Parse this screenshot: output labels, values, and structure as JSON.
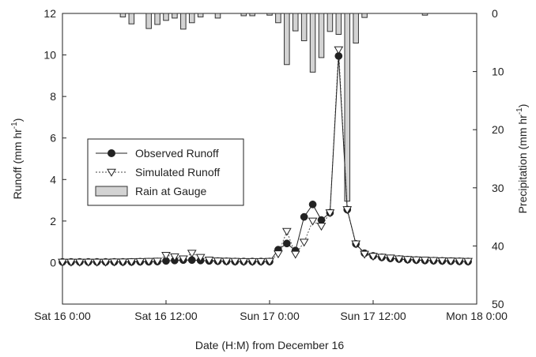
{
  "chart_data": {
    "type": "line",
    "xlabel": "Date (H:M) from December 16",
    "ylabel_left": "Runoff (mm hr",
    "ylabel_left_sup": "-1",
    "ylabel_left_close": ")",
    "ylabel_right": "Precipitation (mm hr",
    "ylabel_right_sup": "-1",
    "ylabel_right_close": ")",
    "x_range_hours": [
      0,
      48
    ],
    "y_left_range": [
      -2,
      12
    ],
    "y_right_range": [
      50,
      0
    ],
    "x_ticks": [
      {
        "hour": 0,
        "label": "Sat 16 0:00"
      },
      {
        "hour": 12,
        "label": "Sat 16 12:00"
      },
      {
        "hour": 24,
        "label": "Sun 17 0:00"
      },
      {
        "hour": 36,
        "label": "Sun 17 12:00"
      },
      {
        "hour": 48,
        "label": "Mon 18 0:00"
      }
    ],
    "y_left_ticks": [
      {
        "value": 0,
        "label": "0"
      },
      {
        "value": 2,
        "label": "2"
      },
      {
        "value": 4,
        "label": "4"
      },
      {
        "value": 6,
        "label": "6"
      },
      {
        "value": 8,
        "label": "8"
      },
      {
        "value": 10,
        "label": "10"
      },
      {
        "value": 12,
        "label": "12"
      }
    ],
    "y_right_ticks": [
      {
        "value": 0,
        "label": "0"
      },
      {
        "value": 10,
        "label": "10"
      },
      {
        "value": 20,
        "label": "20"
      },
      {
        "value": 30,
        "label": "30"
      },
      {
        "value": 40,
        "label": "40"
      },
      {
        "value": 50,
        "label": "50"
      }
    ],
    "series": [
      {
        "name": "Observed Runoff",
        "marker": "circle",
        "color": "#222222",
        "points": [
          [
            0,
            0.03
          ],
          [
            1,
            0.03
          ],
          [
            2,
            0.03
          ],
          [
            3,
            0.03
          ],
          [
            4,
            0.03
          ],
          [
            5,
            0.03
          ],
          [
            6,
            0.03
          ],
          [
            7,
            0.03
          ],
          [
            8,
            0.03
          ],
          [
            9,
            0.04
          ],
          [
            10,
            0.04
          ],
          [
            11,
            0.05
          ],
          [
            12,
            0.08
          ],
          [
            13,
            0.1
          ],
          [
            14,
            0.12
          ],
          [
            15,
            0.12
          ],
          [
            16,
            0.1
          ],
          [
            17,
            0.08
          ],
          [
            18,
            0.07
          ],
          [
            19,
            0.06
          ],
          [
            20,
            0.05
          ],
          [
            21,
            0.05
          ],
          [
            22,
            0.05
          ],
          [
            23,
            0.05
          ],
          [
            24,
            0.05
          ],
          [
            25,
            0.62
          ],
          [
            26,
            0.92
          ],
          [
            27,
            0.58
          ],
          [
            28,
            2.2
          ],
          [
            29,
            2.8
          ],
          [
            30,
            2.05
          ],
          [
            31,
            2.4
          ],
          [
            32,
            9.95
          ],
          [
            33,
            2.55
          ],
          [
            34,
            0.9
          ],
          [
            35,
            0.45
          ],
          [
            36,
            0.32
          ],
          [
            37,
            0.25
          ],
          [
            38,
            0.2
          ],
          [
            39,
            0.17
          ],
          [
            40,
            0.14
          ],
          [
            41,
            0.12
          ],
          [
            42,
            0.1
          ],
          [
            43,
            0.09
          ],
          [
            44,
            0.08
          ],
          [
            45,
            0.07
          ],
          [
            46,
            0.06
          ],
          [
            47,
            0.05
          ]
        ]
      },
      {
        "name": "Simulated Runoff",
        "marker": "triangle-down",
        "color": "#222222",
        "points": [
          [
            0,
            0.02
          ],
          [
            1,
            0.02
          ],
          [
            2,
            0.02
          ],
          [
            3,
            0.02
          ],
          [
            4,
            0.02
          ],
          [
            5,
            0.02
          ],
          [
            6,
            0.03
          ],
          [
            7,
            0.03
          ],
          [
            8,
            0.04
          ],
          [
            9,
            0.05
          ],
          [
            10,
            0.06
          ],
          [
            11,
            0.07
          ],
          [
            12,
            0.35
          ],
          [
            13,
            0.28
          ],
          [
            14,
            0.18
          ],
          [
            15,
            0.45
          ],
          [
            16,
            0.25
          ],
          [
            17,
            0.12
          ],
          [
            18,
            0.08
          ],
          [
            19,
            0.07
          ],
          [
            20,
            0.06
          ],
          [
            21,
            0.05
          ],
          [
            22,
            0.05
          ],
          [
            23,
            0.05
          ],
          [
            24,
            0.06
          ],
          [
            25,
            0.42
          ],
          [
            26,
            1.5
          ],
          [
            27,
            0.4
          ],
          [
            28,
            0.98
          ],
          [
            29,
            2.0
          ],
          [
            30,
            1.75
          ],
          [
            31,
            2.4
          ],
          [
            32,
            10.25
          ],
          [
            33,
            2.55
          ],
          [
            34,
            0.9
          ],
          [
            35,
            0.4
          ],
          [
            36,
            0.3
          ],
          [
            37,
            0.26
          ],
          [
            38,
            0.22
          ],
          [
            39,
            0.18
          ],
          [
            40,
            0.15
          ],
          [
            41,
            0.13
          ],
          [
            42,
            0.12
          ],
          [
            43,
            0.1
          ],
          [
            44,
            0.09
          ],
          [
            45,
            0.08
          ],
          [
            46,
            0.07
          ],
          [
            47,
            0.06
          ]
        ]
      }
    ],
    "rain": {
      "name": "Rain at Gauge",
      "bar_width_hours": 0.6,
      "fill": "#d3d3d3",
      "stroke": "#333333",
      "bars": [
        [
          7,
          0.6
        ],
        [
          8,
          1.8
        ],
        [
          10,
          2.6
        ],
        [
          11,
          1.9
        ],
        [
          12,
          1.2
        ],
        [
          13,
          0.8
        ],
        [
          14,
          2.7
        ],
        [
          15,
          1.6
        ],
        [
          16,
          0.6
        ],
        [
          18,
          0.8
        ],
        [
          21,
          0.4
        ],
        [
          22,
          0.4
        ],
        [
          24,
          0.3
        ],
        [
          25,
          1.6
        ],
        [
          26,
          8.8
        ],
        [
          27,
          3.0
        ],
        [
          28,
          4.7
        ],
        [
          29,
          10.1
        ],
        [
          30,
          7.6
        ],
        [
          31,
          3.1
        ],
        [
          32,
          3.6
        ],
        [
          33,
          32.3
        ],
        [
          34,
          5.1
        ],
        [
          35,
          0.7
        ],
        [
          42,
          0.3
        ]
      ]
    },
    "legend_position": "center-left",
    "grid": false
  }
}
